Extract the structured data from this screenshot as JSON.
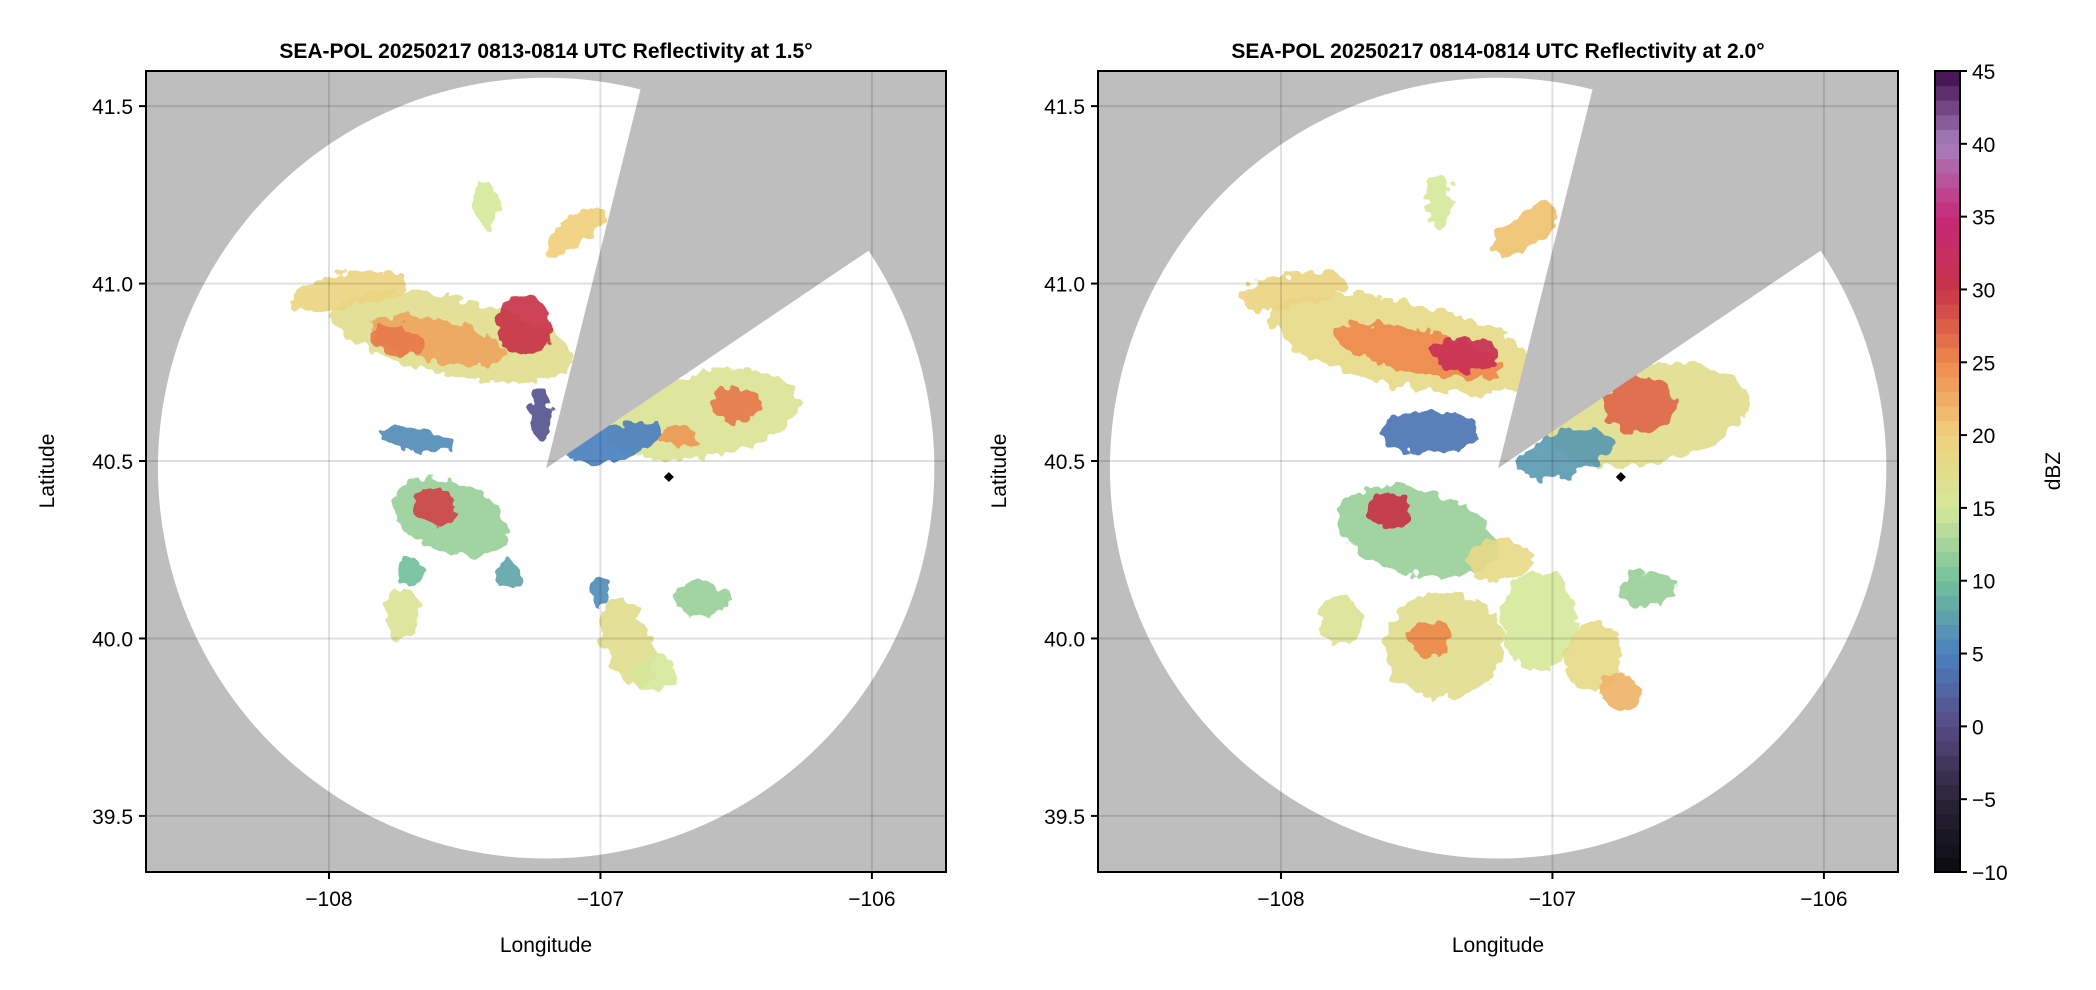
{
  "chart_data": {
    "type": "heatmap",
    "panels": [
      {
        "title": "SEA-POL 20250217 0813-0814 UTC Reflectivity at 1.5°",
        "xlabel": "Longitude",
        "ylabel": "Latitude",
        "xlim": [
          -108.674,
          -105.727
        ],
        "ylim": [
          39.342,
          41.599
        ],
        "xticks": [
          -108,
          -107,
          -106
        ],
        "xtick_labels": [
          "−108",
          "−107",
          "−106"
        ],
        "yticks": [
          39.5,
          40.0,
          40.5,
          41.0,
          41.5
        ],
        "ytick_labels": [
          "39.5",
          "40.0",
          "40.5",
          "41.0",
          "41.5"
        ],
        "grid": true,
        "radar_center": {
          "lon": -107.2,
          "lat": 40.48
        },
        "range_ring_deg": {
          "lon": 1.43,
          "lat": 1.1
        },
        "blocked_sector_azimuth_deg": [
          14,
          56
        ],
        "site_marker": {
          "lon": -106.748,
          "lat": 40.455
        },
        "echoes": [
          {
            "lon": -107.55,
            "lat": 40.85,
            "rx": 0.45,
            "ry": 0.11,
            "rot": 12,
            "dbz": 17
          },
          {
            "lon": -107.6,
            "lat": 40.84,
            "rx": 0.25,
            "ry": 0.06,
            "rot": 12,
            "dbz": 23
          },
          {
            "lon": -107.28,
            "lat": 40.88,
            "rx": 0.1,
            "ry": 0.09,
            "rot": 0,
            "dbz": 30
          },
          {
            "lon": -107.75,
            "lat": 40.84,
            "rx": 0.1,
            "ry": 0.04,
            "rot": 10,
            "dbz": 26
          },
          {
            "lon": -107.93,
            "lat": 40.98,
            "rx": 0.22,
            "ry": 0.05,
            "rot": -10,
            "dbz": 19
          },
          {
            "lon": -107.09,
            "lat": 41.15,
            "rx": 0.13,
            "ry": 0.04,
            "rot": -35,
            "dbz": 20
          },
          {
            "lon": -107.42,
            "lat": 41.23,
            "rx": 0.05,
            "ry": 0.07,
            "rot": 0,
            "dbz": 15
          },
          {
            "lon": -106.62,
            "lat": 40.63,
            "rx": 0.36,
            "ry": 0.12,
            "rot": -10,
            "dbz": 16
          },
          {
            "lon": -106.5,
            "lat": 40.66,
            "rx": 0.09,
            "ry": 0.05,
            "rot": 0,
            "dbz": 26
          },
          {
            "lon": -106.72,
            "lat": 40.57,
            "rx": 0.08,
            "ry": 0.03,
            "rot": 0,
            "dbz": 24
          },
          {
            "lon": -106.95,
            "lat": 40.55,
            "rx": 0.17,
            "ry": 0.05,
            "rot": -15,
            "dbz": 5
          },
          {
            "lon": -107.22,
            "lat": 40.63,
            "rx": 0.04,
            "ry": 0.07,
            "rot": 0,
            "dbz": 1
          },
          {
            "lon": -107.68,
            "lat": 40.56,
            "rx": 0.14,
            "ry": 0.03,
            "rot": 10,
            "dbz": 6
          },
          {
            "lon": -107.55,
            "lat": 40.34,
            "rx": 0.22,
            "ry": 0.1,
            "rot": 20,
            "dbz": 12
          },
          {
            "lon": -107.61,
            "lat": 40.37,
            "rx": 0.08,
            "ry": 0.05,
            "rot": 20,
            "dbz": 29
          },
          {
            "lon": -106.9,
            "lat": 39.99,
            "rx": 0.09,
            "ry": 0.13,
            "rot": -20,
            "dbz": 17
          },
          {
            "lon": -106.8,
            "lat": 39.9,
            "rx": 0.08,
            "ry": 0.05,
            "rot": 0,
            "dbz": 15
          },
          {
            "lon": -106.63,
            "lat": 40.11,
            "rx": 0.1,
            "ry": 0.05,
            "rot": 0,
            "dbz": 12
          },
          {
            "lon": -107.73,
            "lat": 40.07,
            "rx": 0.06,
            "ry": 0.07,
            "rot": 0,
            "dbz": 16
          },
          {
            "lon": -107.7,
            "lat": 40.19,
            "rx": 0.05,
            "ry": 0.04,
            "rot": 0,
            "dbz": 10
          },
          {
            "lon": -107.34,
            "lat": 40.18,
            "rx": 0.05,
            "ry": 0.04,
            "rot": 0,
            "dbz": 8
          },
          {
            "lon": -107.0,
            "lat": 40.13,
            "rx": 0.03,
            "ry": 0.04,
            "rot": 0,
            "dbz": 6
          }
        ]
      },
      {
        "title": "SEA-POL 20250217 0814-0814 UTC Reflectivity at 2.0°",
        "xlabel": "Longitude",
        "ylabel": "Latitude",
        "xlim": [
          -108.674,
          -105.727
        ],
        "ylim": [
          39.342,
          41.599
        ],
        "xticks": [
          -108,
          -107,
          -106
        ],
        "xtick_labels": [
          "−108",
          "−107",
          "−106"
        ],
        "yticks": [
          39.5,
          40.0,
          40.5,
          41.0,
          41.5
        ],
        "ytick_labels": [
          "39.5",
          "40.0",
          "40.5",
          "41.0",
          "41.5"
        ],
        "grid": true,
        "radar_center": {
          "lon": -107.2,
          "lat": 40.48
        },
        "range_ring_deg": {
          "lon": 1.43,
          "lat": 1.1
        },
        "blocked_sector_azimuth_deg": [
          14,
          56
        ],
        "site_marker": {
          "lon": -106.748,
          "lat": 40.455
        },
        "echoes": [
          {
            "lon": -107.55,
            "lat": 40.83,
            "rx": 0.5,
            "ry": 0.12,
            "rot": 12,
            "dbz": 18
          },
          {
            "lon": -107.5,
            "lat": 40.81,
            "rx": 0.32,
            "ry": 0.06,
            "rot": 12,
            "dbz": 25
          },
          {
            "lon": -107.32,
            "lat": 40.8,
            "rx": 0.12,
            "ry": 0.05,
            "rot": 10,
            "dbz": 31
          },
          {
            "lon": -107.95,
            "lat": 40.98,
            "rx": 0.2,
            "ry": 0.05,
            "rot": -10,
            "dbz": 19
          },
          {
            "lon": -107.1,
            "lat": 41.15,
            "rx": 0.14,
            "ry": 0.05,
            "rot": -35,
            "dbz": 21
          },
          {
            "lon": -107.42,
            "lat": 41.23,
            "rx": 0.05,
            "ry": 0.07,
            "rot": 0,
            "dbz": 15
          },
          {
            "lon": -106.65,
            "lat": 40.63,
            "rx": 0.38,
            "ry": 0.14,
            "rot": -10,
            "dbz": 17
          },
          {
            "lon": -106.68,
            "lat": 40.66,
            "rx": 0.13,
            "ry": 0.08,
            "rot": 0,
            "dbz": 27
          },
          {
            "lon": -106.95,
            "lat": 40.52,
            "rx": 0.18,
            "ry": 0.06,
            "rot": -15,
            "dbz": 7
          },
          {
            "lon": -107.45,
            "lat": 40.58,
            "rx": 0.18,
            "ry": 0.06,
            "rot": 0,
            "dbz": 4
          },
          {
            "lon": -107.5,
            "lat": 40.3,
            "rx": 0.3,
            "ry": 0.12,
            "rot": 15,
            "dbz": 12
          },
          {
            "lon": -107.6,
            "lat": 40.36,
            "rx": 0.08,
            "ry": 0.05,
            "rot": 20,
            "dbz": 30
          },
          {
            "lon": -107.2,
            "lat": 40.22,
            "rx": 0.12,
            "ry": 0.06,
            "rot": 0,
            "dbz": 18
          },
          {
            "lon": -107.4,
            "lat": 39.98,
            "rx": 0.22,
            "ry": 0.15,
            "rot": 0,
            "dbz": 17
          },
          {
            "lon": -107.45,
            "lat": 40.0,
            "rx": 0.08,
            "ry": 0.05,
            "rot": 0,
            "dbz": 25
          },
          {
            "lon": -107.05,
            "lat": 40.05,
            "rx": 0.14,
            "ry": 0.14,
            "rot": 0,
            "dbz": 15
          },
          {
            "lon": -106.85,
            "lat": 39.95,
            "rx": 0.1,
            "ry": 0.1,
            "rot": 0,
            "dbz": 18
          },
          {
            "lon": -106.75,
            "lat": 39.85,
            "rx": 0.08,
            "ry": 0.05,
            "rot": 0,
            "dbz": 22
          },
          {
            "lon": -106.65,
            "lat": 40.14,
            "rx": 0.1,
            "ry": 0.05,
            "rot": 0,
            "dbz": 12
          },
          {
            "lon": -107.78,
            "lat": 40.05,
            "rx": 0.08,
            "ry": 0.07,
            "rot": 0,
            "dbz": 16
          }
        ]
      }
    ],
    "colorbar": {
      "label": "dBZ",
      "range": [
        -10,
        45
      ],
      "ticks": [
        -10,
        -5,
        0,
        5,
        10,
        15,
        20,
        25,
        30,
        35,
        40,
        45
      ],
      "tick_labels": [
        "−10",
        "−5",
        "0",
        "5",
        "10",
        "15",
        "20",
        "25",
        "30",
        "35",
        "40",
        "45"
      ],
      "colors": [
        "#0a0a0f",
        "#2a2438",
        "#574a84",
        "#4a80bf",
        "#72c09a",
        "#d6e89a",
        "#f0d07c",
        "#ee8a4c",
        "#c93348",
        "#c7287a",
        "#a87fbc",
        "#3d0c4a"
      ]
    }
  },
  "colors": {
    "background_blocked": "#bebebe",
    "site_marker": "#000000"
  }
}
